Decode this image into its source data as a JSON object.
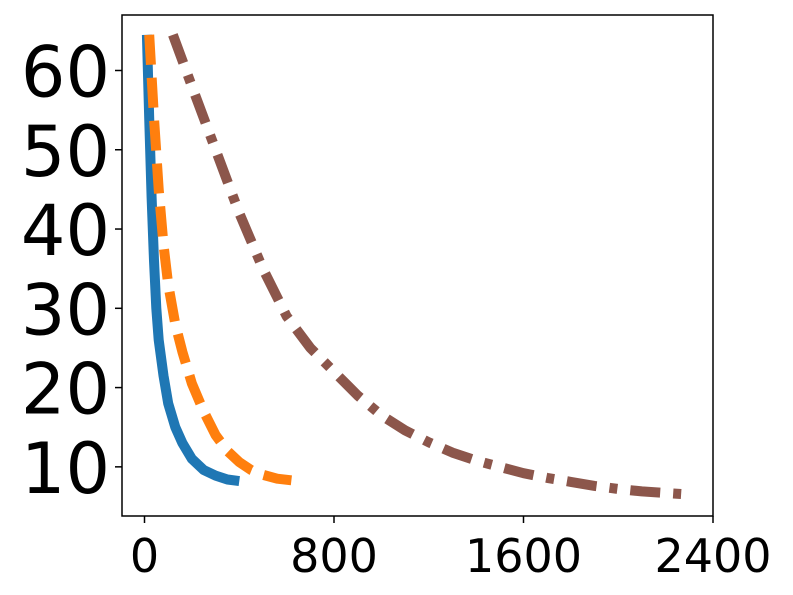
{
  "chart_data": {
    "type": "line",
    "title": "",
    "xlabel": "",
    "ylabel": "",
    "xlim": [
      -95,
      2400
    ],
    "ylim": [
      3.8,
      67
    ],
    "x_ticks": [
      0,
      800,
      1600,
      2400
    ],
    "y_ticks": [
      10,
      20,
      30,
      40,
      50,
      60
    ],
    "grid": false,
    "legend": "none",
    "series": [
      {
        "color": "#1f77b4",
        "linestyle": "solid",
        "points": [
          [
            10,
            64.5
          ],
          [
            20,
            54
          ],
          [
            30,
            44
          ],
          [
            40,
            36
          ],
          [
            50,
            30
          ],
          [
            60,
            26
          ],
          [
            80,
            21.5
          ],
          [
            100,
            18
          ],
          [
            130,
            15
          ],
          [
            160,
            13
          ],
          [
            200,
            11
          ],
          [
            250,
            9.6
          ],
          [
            300,
            8.9
          ],
          [
            350,
            8.4
          ],
          [
            400,
            8.2
          ]
        ]
      },
      {
        "color": "#ff7f0e",
        "linestyle": "dashed",
        "points": [
          [
            20,
            64.5
          ],
          [
            40,
            54
          ],
          [
            60,
            45
          ],
          [
            80,
            38
          ],
          [
            100,
            33
          ],
          [
            130,
            28
          ],
          [
            160,
            24.5
          ],
          [
            200,
            20.5
          ],
          [
            250,
            17
          ],
          [
            300,
            14
          ],
          [
            350,
            12
          ],
          [
            400,
            10.6
          ],
          [
            450,
            9.6
          ],
          [
            500,
            9
          ],
          [
            560,
            8.5
          ],
          [
            620,
            8.3
          ]
        ]
      },
      {
        "color": "#8c564b",
        "linestyle": "dashdot",
        "points": [
          [
            120,
            64.5
          ],
          [
            200,
            58
          ],
          [
            300,
            50
          ],
          [
            400,
            42
          ],
          [
            500,
            35
          ],
          [
            600,
            29
          ],
          [
            700,
            25
          ],
          [
            800,
            22
          ],
          [
            900,
            19
          ],
          [
            1000,
            16.5
          ],
          [
            1100,
            14.6
          ],
          [
            1200,
            13.1
          ],
          [
            1300,
            11.8
          ],
          [
            1400,
            10.8
          ],
          [
            1500,
            10
          ],
          [
            1600,
            9.2
          ],
          [
            1700,
            8.6
          ],
          [
            1800,
            8.1
          ],
          [
            1900,
            7.6
          ],
          [
            2000,
            7.2
          ],
          [
            2100,
            6.9
          ],
          [
            2200,
            6.7
          ],
          [
            2300,
            6.5
          ]
        ]
      }
    ]
  }
}
